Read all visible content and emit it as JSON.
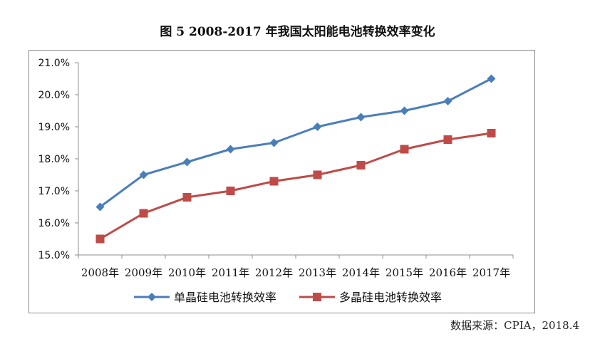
{
  "chart_data": {
    "type": "line",
    "title": "图  5 2008-2017 年我国太阳能电池转换效率变化",
    "categories": [
      "2008年",
      "2009年",
      "2010年",
      "2011年",
      "2012年",
      "2013年",
      "2014年",
      "2015年",
      "2016年",
      "2017年"
    ],
    "series": [
      {
        "name": "单晶硅电池转换效率",
        "values": [
          16.5,
          17.5,
          17.9,
          18.3,
          18.5,
          19.0,
          19.3,
          19.5,
          19.8,
          20.5
        ],
        "color": "#4a7ebb",
        "marker": "diamond"
      },
      {
        "name": "多晶硅电池转换效率",
        "values": [
          15.5,
          16.3,
          16.8,
          17.0,
          17.3,
          17.5,
          17.8,
          18.3,
          18.6,
          18.8
        ],
        "color": "#be4b48",
        "marker": "square"
      }
    ],
    "y_ticks": [
      "21.0%",
      "20.0%",
      "19.0%",
      "18.0%",
      "17.0%",
      "16.0%",
      "15.0%"
    ],
    "ylim": [
      15.0,
      21.0
    ],
    "xlabel": "",
    "ylabel": "",
    "legend_position": "bottom"
  },
  "source": "数据来源：CPIA，2018.4"
}
